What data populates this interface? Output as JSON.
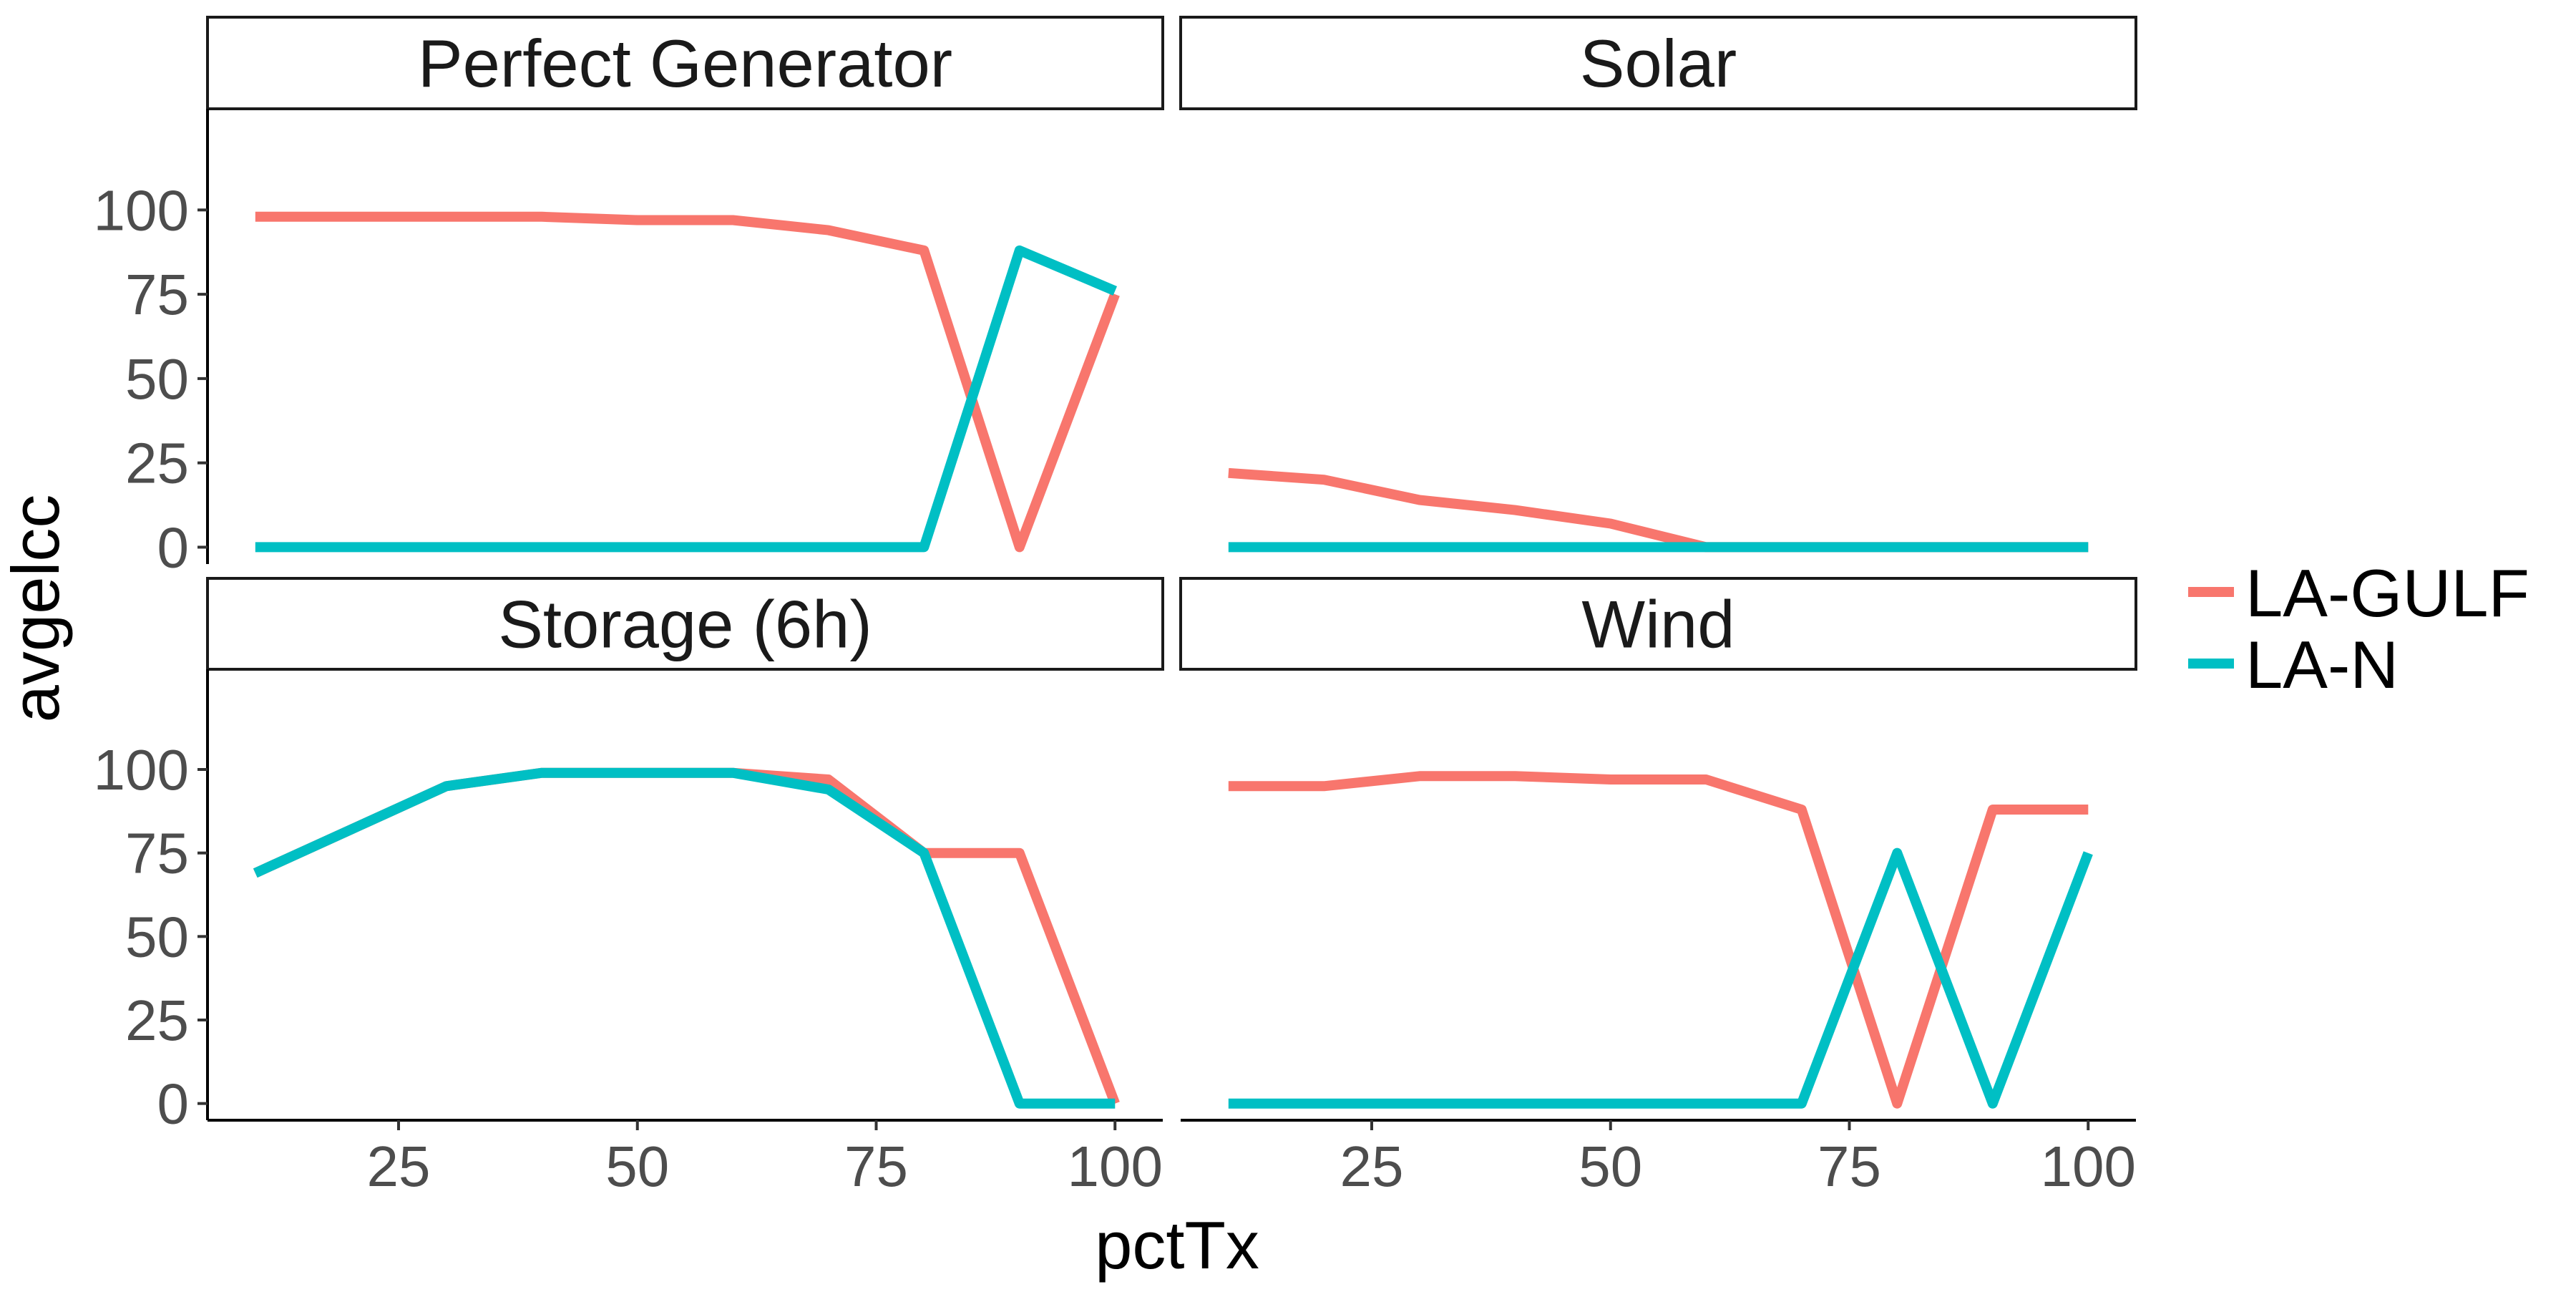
{
  "chart_data": {
    "type": "line",
    "xlabel": "pctTx",
    "ylabel": "avgelcc",
    "xlim": [
      5,
      105
    ],
    "ylim": [
      -5,
      130
    ],
    "xticks": [
      25,
      50,
      75,
      100
    ],
    "yticks": [
      0,
      25,
      50,
      75,
      100
    ],
    "grid": false,
    "legend_position": "right",
    "series_colors": {
      "LA-GULF": "#F8766D",
      "LA-N": "#00BFC4"
    },
    "legend": [
      {
        "name": "LA-GULF",
        "color": "#F8766D"
      },
      {
        "name": "LA-N",
        "color": "#00BFC4"
      }
    ],
    "panels": [
      {
        "title": "Perfect Generator",
        "x": [
          10,
          20,
          30,
          40,
          50,
          60,
          70,
          80,
          90,
          100
        ],
        "series": [
          {
            "name": "LA-GULF",
            "values": [
              98,
              98,
              98,
              98,
              97,
              97,
              94,
              88,
              0,
              75
            ]
          },
          {
            "name": "LA-N",
            "values": [
              0,
              0,
              0,
              0,
              0,
              0,
              0,
              0,
              88,
              76
            ]
          }
        ]
      },
      {
        "title": "Solar",
        "x": [
          10,
          20,
          30,
          40,
          50,
          60,
          70,
          80,
          90,
          100
        ],
        "series": [
          {
            "name": "LA-GULF",
            "values": [
              22,
              20,
              14,
              11,
              7,
              0,
              0,
              0,
              0,
              0
            ]
          },
          {
            "name": "LA-N",
            "values": [
              0,
              0,
              0,
              0,
              0,
              0,
              0,
              0,
              0,
              0
            ]
          }
        ]
      },
      {
        "title": "Storage (6h)",
        "x": [
          10,
          20,
          30,
          40,
          50,
          60,
          70,
          80,
          90,
          100
        ],
        "series": [
          {
            "name": "LA-GULF",
            "values": [
              69,
              82,
              95,
              99,
              99,
              99,
              97,
              75,
              75,
              0
            ]
          },
          {
            "name": "LA-N",
            "values": [
              69,
              82,
              95,
              99,
              99,
              99,
              94,
              75,
              0,
              0
            ]
          }
        ]
      },
      {
        "title": "Wind",
        "x": [
          10,
          20,
          30,
          40,
          50,
          60,
          70,
          80,
          90,
          100
        ],
        "series": [
          {
            "name": "LA-GULF",
            "values": [
              95,
              95,
              98,
              98,
              97,
              97,
              88,
              0,
              88,
              88
            ]
          },
          {
            "name": "LA-N",
            "values": [
              0,
              0,
              0,
              0,
              0,
              0,
              0,
              75,
              0,
              75
            ]
          }
        ]
      }
    ]
  }
}
